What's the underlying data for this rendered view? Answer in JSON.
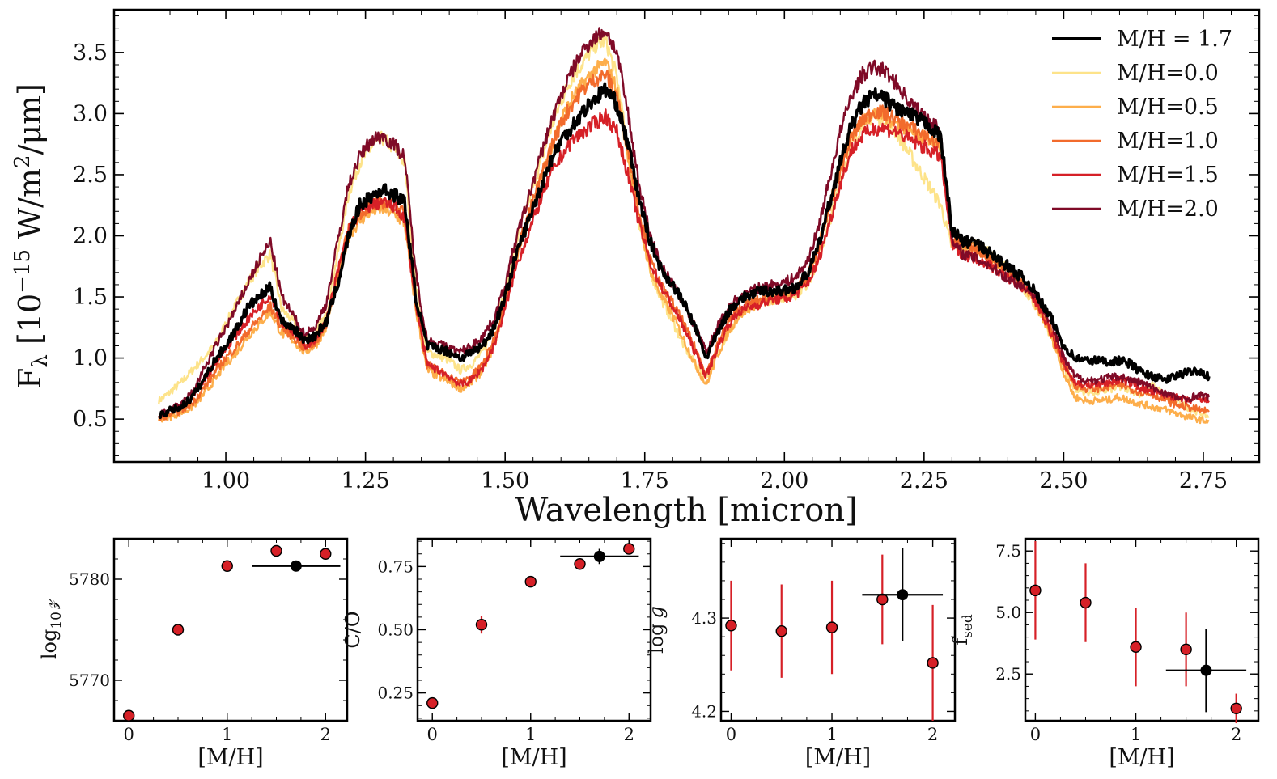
{
  "chart_data": [
    {
      "type": "line",
      "ylabel_main": "F",
      "ylabel_sub": "λ",
      "ylabel_rest": " [10",
      "ylabel_exp": "−15",
      "ylabel_unit1": " W/m",
      "ylabel_exp2": "2",
      "ylabel_unit2": "/μm]",
      "xlabel": "Wavelength [micron]",
      "xlim": [
        0.8,
        2.85
      ],
      "ylim": [
        0.15,
        3.85
      ],
      "xticks": [
        "1.00",
        "1.25",
        "1.50",
        "1.75",
        "2.00",
        "2.25",
        "2.50",
        "2.75"
      ],
      "xtick_values": [
        1.0,
        1.25,
        1.5,
        1.75,
        2.0,
        2.25,
        2.5,
        2.75
      ],
      "yticks": [
        "0.5",
        "1.0",
        "1.5",
        "2.0",
        "2.5",
        "3.0",
        "3.5"
      ],
      "ytick_values": [
        0.5,
        1.0,
        1.5,
        2.0,
        2.5,
        3.0,
        3.5
      ],
      "grid": false,
      "legend_position": "top-right",
      "x": [
        0.88,
        0.9,
        0.92,
        0.94,
        0.96,
        0.98,
        1.0,
        1.02,
        1.04,
        1.06,
        1.08,
        1.1,
        1.12,
        1.14,
        1.16,
        1.18,
        1.2,
        1.22,
        1.24,
        1.26,
        1.28,
        1.3,
        1.32,
        1.34,
        1.36,
        1.38,
        1.4,
        1.42,
        1.44,
        1.46,
        1.48,
        1.5,
        1.52,
        1.54,
        1.56,
        1.58,
        1.6,
        1.62,
        1.64,
        1.66,
        1.68,
        1.7,
        1.72,
        1.74,
        1.76,
        1.78,
        1.8,
        1.82,
        1.84,
        1.86,
        1.88,
        1.9,
        1.92,
        1.94,
        1.96,
        1.98,
        2.0,
        2.02,
        2.04,
        2.06,
        2.08,
        2.1,
        2.12,
        2.14,
        2.16,
        2.18,
        2.2,
        2.22,
        2.24,
        2.26,
        2.28,
        2.3,
        2.32,
        2.34,
        2.36,
        2.38,
        2.4,
        2.42,
        2.44,
        2.46,
        2.48,
        2.5,
        2.52,
        2.54,
        2.56,
        2.58,
        2.6,
        2.62,
        2.64,
        2.66,
        2.68,
        2.7,
        2.72,
        2.74,
        2.76
      ],
      "series": [
        {
          "name": "M/H = 1.7",
          "color": "#000000",
          "width": 3.6,
          "values": [
            0.52,
            0.57,
            0.6,
            0.68,
            0.82,
            0.98,
            1.1,
            1.25,
            1.42,
            1.5,
            1.58,
            1.3,
            1.25,
            1.15,
            1.18,
            1.3,
            1.6,
            2.0,
            2.25,
            2.32,
            2.38,
            2.34,
            2.28,
            1.5,
            1.1,
            1.08,
            1.05,
            1.0,
            1.05,
            1.1,
            1.25,
            1.5,
            1.85,
            2.1,
            2.35,
            2.6,
            2.78,
            2.9,
            3.02,
            3.12,
            3.2,
            3.08,
            2.75,
            2.3,
            1.95,
            1.72,
            1.6,
            1.45,
            1.25,
            1.0,
            1.2,
            1.38,
            1.48,
            1.52,
            1.55,
            1.55,
            1.55,
            1.58,
            1.68,
            1.9,
            2.25,
            2.6,
            2.9,
            3.08,
            3.15,
            3.12,
            3.05,
            3.0,
            2.95,
            2.9,
            2.8,
            2.05,
            1.95,
            1.95,
            1.88,
            1.82,
            1.75,
            1.68,
            1.6,
            1.45,
            1.3,
            1.1,
            1.0,
            0.98,
            0.98,
            0.97,
            0.98,
            0.95,
            0.88,
            0.85,
            0.82,
            0.85,
            0.88,
            0.9,
            0.85
          ]
        },
        {
          "name": "M/H=0.0",
          "color": "#fde38a",
          "width": 2.4,
          "values": [
            0.65,
            0.72,
            0.8,
            0.9,
            1.0,
            1.1,
            1.28,
            1.45,
            1.62,
            1.75,
            1.85,
            1.4,
            1.3,
            1.15,
            1.2,
            1.35,
            1.85,
            2.35,
            2.6,
            2.72,
            2.8,
            2.72,
            2.6,
            1.6,
            1.05,
            1.02,
            0.98,
            0.9,
            0.95,
            1.05,
            1.25,
            1.55,
            1.95,
            2.25,
            2.55,
            2.85,
            3.1,
            3.3,
            3.42,
            3.55,
            3.6,
            3.3,
            2.7,
            2.1,
            1.7,
            1.48,
            1.3,
            1.1,
            0.95,
            0.85,
            1.05,
            1.2,
            1.35,
            1.42,
            1.45,
            1.48,
            1.5,
            1.52,
            1.6,
            1.78,
            2.1,
            2.45,
            2.75,
            2.92,
            2.98,
            2.95,
            2.85,
            2.7,
            2.55,
            2.4,
            2.25,
            1.9,
            1.9,
            1.92,
            1.88,
            1.8,
            1.72,
            1.62,
            1.5,
            1.35,
            1.15,
            0.92,
            0.75,
            0.72,
            0.72,
            0.74,
            0.76,
            0.74,
            0.7,
            0.78,
            0.7,
            0.66,
            0.6,
            0.56,
            0.52
          ]
        },
        {
          "name": "M/H=0.5",
          "color": "#fdae4b",
          "width": 2.4,
          "values": [
            0.5,
            0.52,
            0.55,
            0.6,
            0.7,
            0.82,
            0.95,
            1.05,
            1.18,
            1.28,
            1.38,
            1.2,
            1.15,
            1.05,
            1.1,
            1.25,
            1.65,
            2.0,
            2.12,
            2.2,
            2.22,
            2.18,
            2.1,
            1.4,
            0.9,
            0.85,
            0.8,
            0.75,
            0.8,
            0.9,
            1.1,
            1.45,
            1.8,
            2.1,
            2.4,
            2.7,
            2.95,
            3.12,
            3.25,
            3.35,
            3.42,
            3.2,
            2.65,
            2.1,
            1.72,
            1.5,
            1.35,
            1.15,
            0.95,
            0.78,
            1.02,
            1.22,
            1.35,
            1.42,
            1.45,
            1.48,
            1.5,
            1.55,
            1.65,
            1.88,
            2.25,
            2.55,
            2.82,
            2.95,
            3.0,
            2.98,
            2.92,
            2.88,
            2.82,
            2.78,
            2.72,
            1.95,
            1.92,
            1.9,
            1.85,
            1.78,
            1.7,
            1.62,
            1.52,
            1.35,
            1.15,
            0.88,
            0.68,
            0.65,
            0.65,
            0.66,
            0.68,
            0.65,
            0.62,
            0.6,
            0.58,
            0.55,
            0.52,
            0.5,
            0.48
          ]
        },
        {
          "name": "M/H=1.0",
          "color": "#f26b2c",
          "width": 2.4,
          "values": [
            0.5,
            0.54,
            0.57,
            0.63,
            0.75,
            0.88,
            1.0,
            1.1,
            1.22,
            1.32,
            1.42,
            1.25,
            1.18,
            1.08,
            1.12,
            1.28,
            1.7,
            2.05,
            2.18,
            2.25,
            2.28,
            2.24,
            2.18,
            1.45,
            0.95,
            0.9,
            0.85,
            0.8,
            0.85,
            0.95,
            1.15,
            1.45,
            1.85,
            2.15,
            2.42,
            2.7,
            2.92,
            3.08,
            3.2,
            3.28,
            3.32,
            3.15,
            2.72,
            2.2,
            1.8,
            1.58,
            1.45,
            1.28,
            1.08,
            0.88,
            1.1,
            1.3,
            1.4,
            1.45,
            1.48,
            1.5,
            1.52,
            1.56,
            1.66,
            1.88,
            2.22,
            2.52,
            2.8,
            2.95,
            3.02,
            3.0,
            2.95,
            2.9,
            2.85,
            2.8,
            2.75,
            1.98,
            1.92,
            1.9,
            1.85,
            1.78,
            1.72,
            1.64,
            1.55,
            1.4,
            1.2,
            0.95,
            0.78,
            0.75,
            0.75,
            0.76,
            0.78,
            0.75,
            0.72,
            0.7,
            0.66,
            0.62,
            0.6,
            0.58,
            0.56
          ]
        },
        {
          "name": "M/H=1.5",
          "color": "#d62027",
          "width": 2.4,
          "values": [
            0.52,
            0.56,
            0.6,
            0.68,
            0.82,
            0.95,
            1.08,
            1.2,
            1.32,
            1.42,
            1.52,
            1.3,
            1.22,
            1.1,
            1.15,
            1.3,
            1.7,
            2.05,
            2.2,
            2.25,
            2.28,
            2.24,
            2.15,
            1.45,
            0.95,
            0.9,
            0.85,
            0.78,
            0.82,
            0.92,
            1.1,
            1.4,
            1.75,
            2.0,
            2.25,
            2.48,
            2.65,
            2.78,
            2.85,
            2.92,
            2.98,
            2.85,
            2.5,
            2.1,
            1.78,
            1.58,
            1.42,
            1.25,
            1.05,
            0.85,
            1.08,
            1.28,
            1.38,
            1.42,
            1.45,
            1.48,
            1.48,
            1.52,
            1.6,
            1.78,
            2.1,
            2.42,
            2.7,
            2.82,
            2.88,
            2.88,
            2.85,
            2.8,
            2.75,
            2.7,
            2.65,
            1.92,
            1.85,
            1.82,
            1.78,
            1.72,
            1.66,
            1.6,
            1.52,
            1.38,
            1.18,
            0.95,
            0.8,
            0.78,
            0.78,
            0.8,
            0.82,
            0.8,
            0.75,
            0.72,
            0.7,
            0.68,
            0.65,
            0.66,
            0.65
          ]
        },
        {
          "name": "M/H=2.0",
          "color": "#7f0a27",
          "width": 2.4,
          "values": [
            0.53,
            0.58,
            0.62,
            0.72,
            0.9,
            1.08,
            1.25,
            1.42,
            1.62,
            1.8,
            1.95,
            1.5,
            1.35,
            1.2,
            1.25,
            1.45,
            1.95,
            2.42,
            2.65,
            2.78,
            2.82,
            2.75,
            2.65,
            1.7,
            1.15,
            1.12,
            1.08,
            1.05,
            1.1,
            1.18,
            1.32,
            1.6,
            1.98,
            2.28,
            2.6,
            2.9,
            3.15,
            3.35,
            3.52,
            3.62,
            3.68,
            3.5,
            3.0,
            2.42,
            2.0,
            1.75,
            1.6,
            1.45,
            1.25,
            1.05,
            1.25,
            1.42,
            1.5,
            1.55,
            1.58,
            1.6,
            1.62,
            1.66,
            1.78,
            2.05,
            2.45,
            2.85,
            3.15,
            3.32,
            3.38,
            3.35,
            3.25,
            3.12,
            3.02,
            2.95,
            2.85,
            1.95,
            1.85,
            1.82,
            1.78,
            1.72,
            1.65,
            1.6,
            1.55,
            1.45,
            1.25,
            1.0,
            0.85,
            0.82,
            0.82,
            0.84,
            0.85,
            0.82,
            0.8,
            0.75,
            0.72,
            0.68,
            0.66,
            0.7,
            0.68
          ]
        }
      ]
    },
    {
      "type": "scatter",
      "xlabel": "[M/H]",
      "ylabel_main": "log",
      "ylabel_sub": "10",
      "ylabel_z": "𝓏",
      "xlim": [
        -0.15,
        2.22
      ],
      "ylim": [
        5766.0,
        5784.0
      ],
      "xticks": [
        "0",
        "1",
        "2"
      ],
      "xtick_values": [
        0,
        1,
        2
      ],
      "yticks": [
        "5770",
        "5780"
      ],
      "ytick_values": [
        5770,
        5780
      ],
      "points": [
        {
          "x": 0.0,
          "y": 5766.5,
          "yerr": 0
        },
        {
          "x": 0.5,
          "y": 5775.0,
          "yerr": 0
        },
        {
          "x": 1.0,
          "y": 5781.3,
          "yerr": 0
        },
        {
          "x": 1.5,
          "y": 5782.8,
          "yerr": 0
        },
        {
          "x": 2.0,
          "y": 5782.5,
          "yerr": 0
        }
      ],
      "reference": {
        "x": 1.7,
        "y": 5781.3,
        "xerr": 0.45,
        "yerr": 0
      }
    },
    {
      "type": "scatter",
      "xlabel": "[M/H]",
      "ylabel": "C/O",
      "xlim": [
        -0.15,
        2.22
      ],
      "ylim": [
        0.14,
        0.86
      ],
      "xticks": [
        "0",
        "1",
        "2"
      ],
      "xtick_values": [
        0,
        1,
        2
      ],
      "yticks": [
        "0.25",
        "0.50",
        "0.75"
      ],
      "ytick_values": [
        0.25,
        0.5,
        0.75
      ],
      "points": [
        {
          "x": 0.0,
          "y": 0.21,
          "yerr": 0.015
        },
        {
          "x": 0.5,
          "y": 0.52,
          "yerr": 0.035
        },
        {
          "x": 1.0,
          "y": 0.69,
          "yerr": 0.012
        },
        {
          "x": 1.5,
          "y": 0.76,
          "yerr": 0.012
        },
        {
          "x": 2.0,
          "y": 0.82,
          "yerr": 0.012
        }
      ],
      "reference": {
        "x": 1.7,
        "y": 0.79,
        "xerr": 0.4,
        "yerr": 0.03
      }
    },
    {
      "type": "scatter",
      "xlabel": "[M/H]",
      "ylabel_main": "log",
      "ylabel_g": "g",
      "xlim": [
        -0.1,
        2.22
      ],
      "ylim": [
        4.19,
        4.385
      ],
      "xticks": [
        "0",
        "1",
        "2"
      ],
      "xtick_values": [
        0,
        1,
        2
      ],
      "yticks": [
        "4.2",
        "4.3"
      ],
      "ytick_values": [
        4.2,
        4.3
      ],
      "points": [
        {
          "x": 0.0,
          "y": 4.292,
          "yerr": 0.048
        },
        {
          "x": 0.5,
          "y": 4.286,
          "yerr": 0.05
        },
        {
          "x": 1.0,
          "y": 4.29,
          "yerr": 0.05
        },
        {
          "x": 1.5,
          "y": 4.32,
          "yerr": 0.048
        },
        {
          "x": 2.0,
          "y": 4.252,
          "yerr": 0.062
        }
      ],
      "reference": {
        "x": 1.7,
        "y": 4.325,
        "xerr": 0.4,
        "yerr": 0.05
      }
    },
    {
      "type": "scatter",
      "xlabel": "[M/H]",
      "ylabel_main": "f",
      "ylabel_sub": "sed",
      "xlim": [
        -0.1,
        2.22
      ],
      "ylim": [
        0.6,
        8.0
      ],
      "xticks": [
        "0",
        "1",
        "2"
      ],
      "xtick_values": [
        0,
        1,
        2
      ],
      "yticks": [
        "2.5",
        "5.0",
        "7.5"
      ],
      "ytick_values": [
        2.5,
        5.0,
        7.5
      ],
      "points": [
        {
          "x": 0.0,
          "y": 5.9,
          "yerr": 2.0
        },
        {
          "x": 0.5,
          "y": 5.4,
          "yerr": 1.6
        },
        {
          "x": 1.0,
          "y": 3.6,
          "yerr": 1.6
        },
        {
          "x": 1.5,
          "y": 3.5,
          "yerr": 1.5
        },
        {
          "x": 2.0,
          "y": 1.1,
          "yerr": 0.6
        }
      ],
      "reference": {
        "x": 1.7,
        "y": 2.65,
        "xerr": 0.4,
        "yerr": 1.7
      }
    }
  ]
}
